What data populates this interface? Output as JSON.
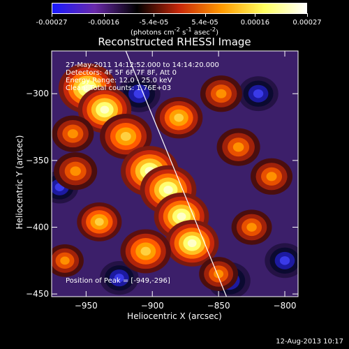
{
  "colorbar": {
    "tick_labels": [
      "-0.00027",
      "-0.00016",
      "-5.4e-05",
      "5.4e-05",
      "0.00016",
      "0.00027"
    ],
    "unit_html": "(photons cm<sup>-2</sup> s<sup>-1</sup> asec<sup>-2</sup>)",
    "colors": [
      "#1a1aff",
      "#6a2aaa",
      "#000000",
      "#c8280a",
      "#ff9a00",
      "#ffff60",
      "#ffffff"
    ]
  },
  "annotations": {
    "line1": "27-May-2011 14:12:52.000 to 14:14:20.000",
    "line2": "Detectors: 4F 5F 6F 7F 8F, Att 0",
    "line3": "Energy Range: 12.0 - 25.0 keV",
    "line4": "Clean:  Total counts: 1.76E+03",
    "peak": "Position of Peak = [-949,-296]"
  },
  "footer": "12-Aug-2013 10:17",
  "chart_data": {
    "type": "heatmap",
    "title": "Reconstructed RHESSI Image",
    "xlabel": "Heliocentric X (arcsec)",
    "ylabel": "Heliocentric Y (arcsec)",
    "xlim": [
      -976,
      -790
    ],
    "ylim": [
      -452,
      -268
    ],
    "x_ticks": [
      -950,
      -900,
      -850,
      -800
    ],
    "y_ticks": [
      -450,
      -400,
      -350,
      -300
    ],
    "color_range": [
      -0.00027,
      0.00027
    ],
    "peak_position": [
      -949,
      -296
    ],
    "limb_line": {
      "x": [
        -920,
        -844
      ],
      "y": [
        -268,
        -452
      ]
    },
    "emission_blobs": [
      {
        "x": -949,
        "y": -296,
        "intensity": 1.0
      },
      {
        "x": -936,
        "y": -312,
        "intensity": 0.85
      },
      {
        "x": -920,
        "y": -332,
        "intensity": 0.8
      },
      {
        "x": -902,
        "y": -358,
        "intensity": 1.0
      },
      {
        "x": -888,
        "y": -372,
        "intensity": 0.95
      },
      {
        "x": -878,
        "y": -392,
        "intensity": 0.9
      },
      {
        "x": -870,
        "y": -412,
        "intensity": 0.85
      },
      {
        "x": -905,
        "y": -418,
        "intensity": 0.75
      },
      {
        "x": -940,
        "y": -396,
        "intensity": 0.55
      },
      {
        "x": -958,
        "y": -358,
        "intensity": 0.5
      },
      {
        "x": -880,
        "y": -318,
        "intensity": 0.65
      },
      {
        "x": -848,
        "y": -300,
        "intensity": 0.45
      },
      {
        "x": -835,
        "y": -340,
        "intensity": 0.5
      },
      {
        "x": -810,
        "y": -362,
        "intensity": 0.45
      },
      {
        "x": -825,
        "y": -400,
        "intensity": 0.4
      },
      {
        "x": -850,
        "y": -435,
        "intensity": 0.35
      },
      {
        "x": -960,
        "y": -330,
        "intensity": 0.45
      },
      {
        "x": -966,
        "y": -425,
        "intensity": 0.3
      }
    ],
    "negative_blobs": [
      {
        "x": -910,
        "y": -300,
        "intensity": 0.7
      },
      {
        "x": -820,
        "y": -300,
        "intensity": 0.6
      },
      {
        "x": -925,
        "y": -438,
        "intensity": 0.55
      },
      {
        "x": -800,
        "y": -425,
        "intensity": 0.6
      },
      {
        "x": -842,
        "y": -440,
        "intensity": 0.7
      },
      {
        "x": -970,
        "y": -370,
        "intensity": 0.5
      }
    ]
  }
}
